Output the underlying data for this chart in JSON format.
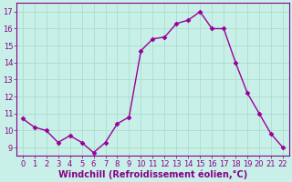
{
  "x": [
    0,
    1,
    2,
    3,
    4,
    5,
    6,
    7,
    8,
    9,
    10,
    11,
    12,
    13,
    14,
    15,
    16,
    17,
    18,
    19,
    20,
    21,
    22
  ],
  "y": [
    10.7,
    10.2,
    10.0,
    9.3,
    9.7,
    9.3,
    8.7,
    9.3,
    10.4,
    10.8,
    14.7,
    15.4,
    15.5,
    16.3,
    16.5,
    17.0,
    16.0,
    16.0,
    14.0,
    12.2,
    11.0,
    9.8,
    9.0
  ],
  "line_color": "#990099",
  "marker": "D",
  "marker_size": 2.5,
  "line_width": 1.0,
  "xlabel": "Windchill (Refroidissement éolien,°C)",
  "xlabel_fontsize": 7,
  "background_color": "#c8f0e8",
  "grid_color": "#aaddcc",
  "ylim": [
    8.5,
    17.5
  ],
  "xlim": [
    -0.5,
    22.5
  ],
  "yticks": [
    9,
    10,
    11,
    12,
    13,
    14,
    15,
    16,
    17
  ],
  "xticks": [
    0,
    1,
    2,
    3,
    4,
    5,
    6,
    7,
    8,
    9,
    10,
    11,
    12,
    13,
    14,
    15,
    16,
    17,
    18,
    19,
    20,
    21,
    22
  ],
  "tick_fontsize": 6,
  "tick_color": "#880088",
  "spine_color": "#880088"
}
